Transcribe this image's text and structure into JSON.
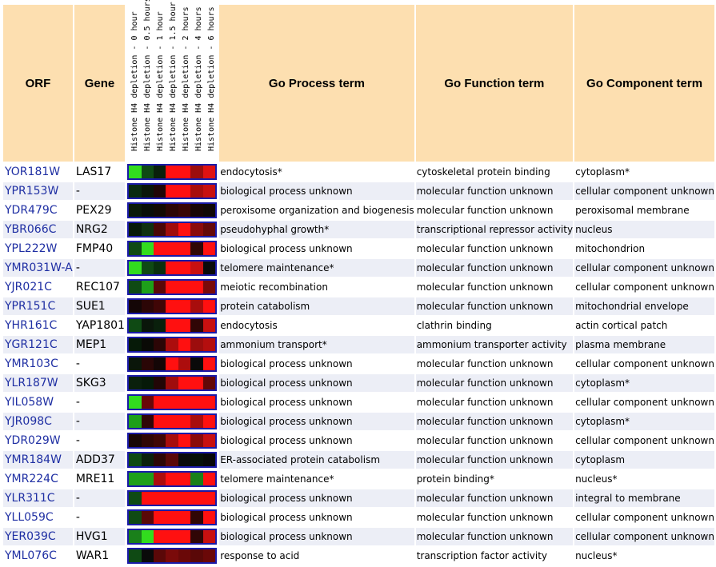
{
  "header": {
    "orf": "ORF",
    "gene": "Gene",
    "process": "Go Process term",
    "function": "Go Function term",
    "component": "Go Component term",
    "conditions": [
      "Histone H4 depletion - 0 hour",
      "Histone H4 depletion - 0.5 hours",
      "Histone H4 depletion - 1 hour",
      "Histone H4 depletion - 1.5 hour",
      "Histone H4 depletion - 2 hours",
      "Histone H4 depletion - 4 hours",
      "Histone H4 depletion - 6 hours"
    ]
  },
  "rows": [
    {
      "orf": "YOR181W",
      "gene": "LAS17",
      "process": "endocytosis*",
      "function": "cytoskeletal protein binding",
      "component": "cytoplasm*",
      "heat": [
        "#32dc1e",
        "#0f4a14",
        "#0a200c",
        "#ff1010",
        "#ff1010",
        "#9c0d0d",
        "#e01212"
      ]
    },
    {
      "orf": "YPR153W",
      "gene": "-",
      "process": "biological process unknown",
      "function": "molecular function unknown",
      "component": "cellular component unknown",
      "heat": [
        "#082a10",
        "#0a160a",
        "#200606",
        "#ff1010",
        "#ff1010",
        "#a80d0d",
        "#c81010"
      ]
    },
    {
      "orf": "YDR479C",
      "gene": "PEX29",
      "process": "peroxisome organization and biogenesis",
      "function": "molecular function unknown",
      "component": "peroxisomal membrane",
      "heat": [
        "#0a1a0a",
        "#080e08",
        "#120a04",
        "#2c0606",
        "#3a0606",
        "#180606",
        "#100806"
      ]
    },
    {
      "orf": "YBR066C",
      "gene": "NRG2",
      "process": "pseudohyphal growth*",
      "function": "transcriptional repressor activity",
      "component": "nucleus",
      "heat": [
        "#061a08",
        "#0f3010",
        "#4a0606",
        "#a00c0c",
        "#ff1010",
        "#8a0a0a",
        "#640808"
      ]
    },
    {
      "orf": "YPL222W",
      "gene": "FMP40",
      "process": "biological process unknown",
      "function": "molecular function unknown",
      "component": "mitochondrion",
      "heat": [
        "#0f4a14",
        "#32dc1e",
        "#ff1010",
        "#ff1010",
        "#ff1010",
        "#300606",
        "#ff1010"
      ]
    },
    {
      "orf": "YMR031W-A",
      "gene": "-",
      "process": "telomere maintenance*",
      "function": "molecular function unknown",
      "component": "cellular component unknown",
      "heat": [
        "#32dc1e",
        "#0f4a14",
        "#0a300e",
        "#ff1010",
        "#ff1010",
        "#c81010",
        "#0a0a0a"
      ]
    },
    {
      "orf": "YJR021C",
      "gene": "REC107",
      "process": "meiotic recombination",
      "function": "molecular function unknown",
      "component": "cellular component unknown",
      "heat": [
        "#0f4a14",
        "#1ea01a",
        "#5a0808",
        "#ff1010",
        "#ff1010",
        "#ff1010",
        "#7a0a0a"
      ]
    },
    {
      "orf": "YPR151C",
      "gene": "SUE1",
      "process": "protein catabolism",
      "function": "molecular function unknown",
      "component": "mitochondrial envelope",
      "heat": [
        "#140606",
        "#2c0606",
        "#400606",
        "#ff1010",
        "#ff1010",
        "#a80d0d",
        "#ff1010"
      ]
    },
    {
      "orf": "YHR161C",
      "gene": "YAP1801",
      "process": "endocytosis",
      "function": "clathrin binding",
      "component": "actin cortical patch",
      "heat": [
        "#0f4a14",
        "#0a160a",
        "#0a200c",
        "#ff1010",
        "#ff1010",
        "#300606",
        "#c81010"
      ]
    },
    {
      "orf": "YGR121C",
      "gene": "MEP1",
      "process": "ammonium transport*",
      "function": "ammonium transporter activity",
      "component": "plasma membrane",
      "heat": [
        "#061a08",
        "#0a0a06",
        "#2c0606",
        "#ac0d0d",
        "#ff1010",
        "#9c0d0d",
        "#b40e0e"
      ]
    },
    {
      "orf": "YMR103C",
      "gene": "-",
      "process": "biological process unknown",
      "function": "molecular function unknown",
      "component": "cellular component unknown",
      "heat": [
        "#0a160a",
        "#2a0606",
        "#140606",
        "#ff1010",
        "#ac0d0d",
        "#0a0a0a",
        "#ff1010"
      ]
    },
    {
      "orf": "YLR187W",
      "gene": "SKG3",
      "process": "biological process unknown",
      "function": "molecular function unknown",
      "component": "cytoplasm*",
      "heat": [
        "#0a200c",
        "#061a08",
        "#220606",
        "#a00c0c",
        "#ff1010",
        "#ff1010",
        "#640808"
      ]
    },
    {
      "orf": "YIL058W",
      "gene": "-",
      "process": "biological process unknown",
      "function": "molecular function unknown",
      "component": "cellular component unknown",
      "heat": [
        "#32dc1e",
        "#6a0808",
        "#ff1010",
        "#ff1010",
        "#ff1010",
        "#ff1010",
        "#ff1010"
      ]
    },
    {
      "orf": "YJR098C",
      "gene": "-",
      "process": "biological process unknown",
      "function": "molecular function unknown",
      "component": "cytoplasm*",
      "heat": [
        "#1ea01a",
        "#300606",
        "#ff1010",
        "#ff1010",
        "#ff1010",
        "#a80d0d",
        "#ff1010"
      ]
    },
    {
      "orf": "YDR029W",
      "gene": "-",
      "process": "biological process unknown",
      "function": "molecular function unknown",
      "component": "cellular component unknown",
      "heat": [
        "#180606",
        "#300606",
        "#400606",
        "#a80d0d",
        "#ff1010",
        "#8a0a0a",
        "#c81010"
      ]
    },
    {
      "orf": "YMR184W",
      "gene": "ADD37",
      "process": "ER-associated protein catabolism",
      "function": "molecular function unknown",
      "component": "cytoplasm",
      "heat": [
        "#0f4a14",
        "#0a200c",
        "#2c0606",
        "#5a0808",
        "#0a0a0a",
        "#061008",
        "#080808"
      ]
    },
    {
      "orf": "YMR224C",
      "gene": "MRE11",
      "process": "telomere maintenance*",
      "function": "protein binding*",
      "component": "nucleus*",
      "heat": [
        "#1ea01a",
        "#1ea01a",
        "#ac0d0d",
        "#ff1010",
        "#ff1010",
        "#1a801a",
        "#ff1010"
      ]
    },
    {
      "orf": "YLR311C",
      "gene": "-",
      "process": "biological process unknown",
      "function": "molecular function unknown",
      "component": "integral to membrane",
      "heat": [
        "#0f4a14",
        "#ff1010",
        "#ff1010",
        "#ff1010",
        "#ff1010",
        "#ff1010",
        "#ff1010"
      ]
    },
    {
      "orf": "YLL059C",
      "gene": "-",
      "process": "biological process unknown",
      "function": "molecular function unknown",
      "component": "cellular component unknown",
      "heat": [
        "#0f4a14",
        "#5a0808",
        "#ff1010",
        "#ff1010",
        "#ff1010",
        "#300606",
        "#ff1010"
      ]
    },
    {
      "orf": "YER039C",
      "gene": "HVG1",
      "process": "biological process unknown",
      "function": "molecular function unknown",
      "component": "cellular component unknown",
      "heat": [
        "#1a801a",
        "#32dc1e",
        "#ff1010",
        "#ff1010",
        "#ff1010",
        "#300606",
        "#c81010"
      ]
    },
    {
      "orf": "YML076C",
      "gene": "WAR1",
      "process": "response to acid",
      "function": "transcription factor activity",
      "component": "nucleus*",
      "heat": [
        "#0f4a14",
        "#0a0a0a",
        "#5a0808",
        "#7a0a0a",
        "#6a0808",
        "#5a0808",
        "#6a0808"
      ]
    }
  ]
}
